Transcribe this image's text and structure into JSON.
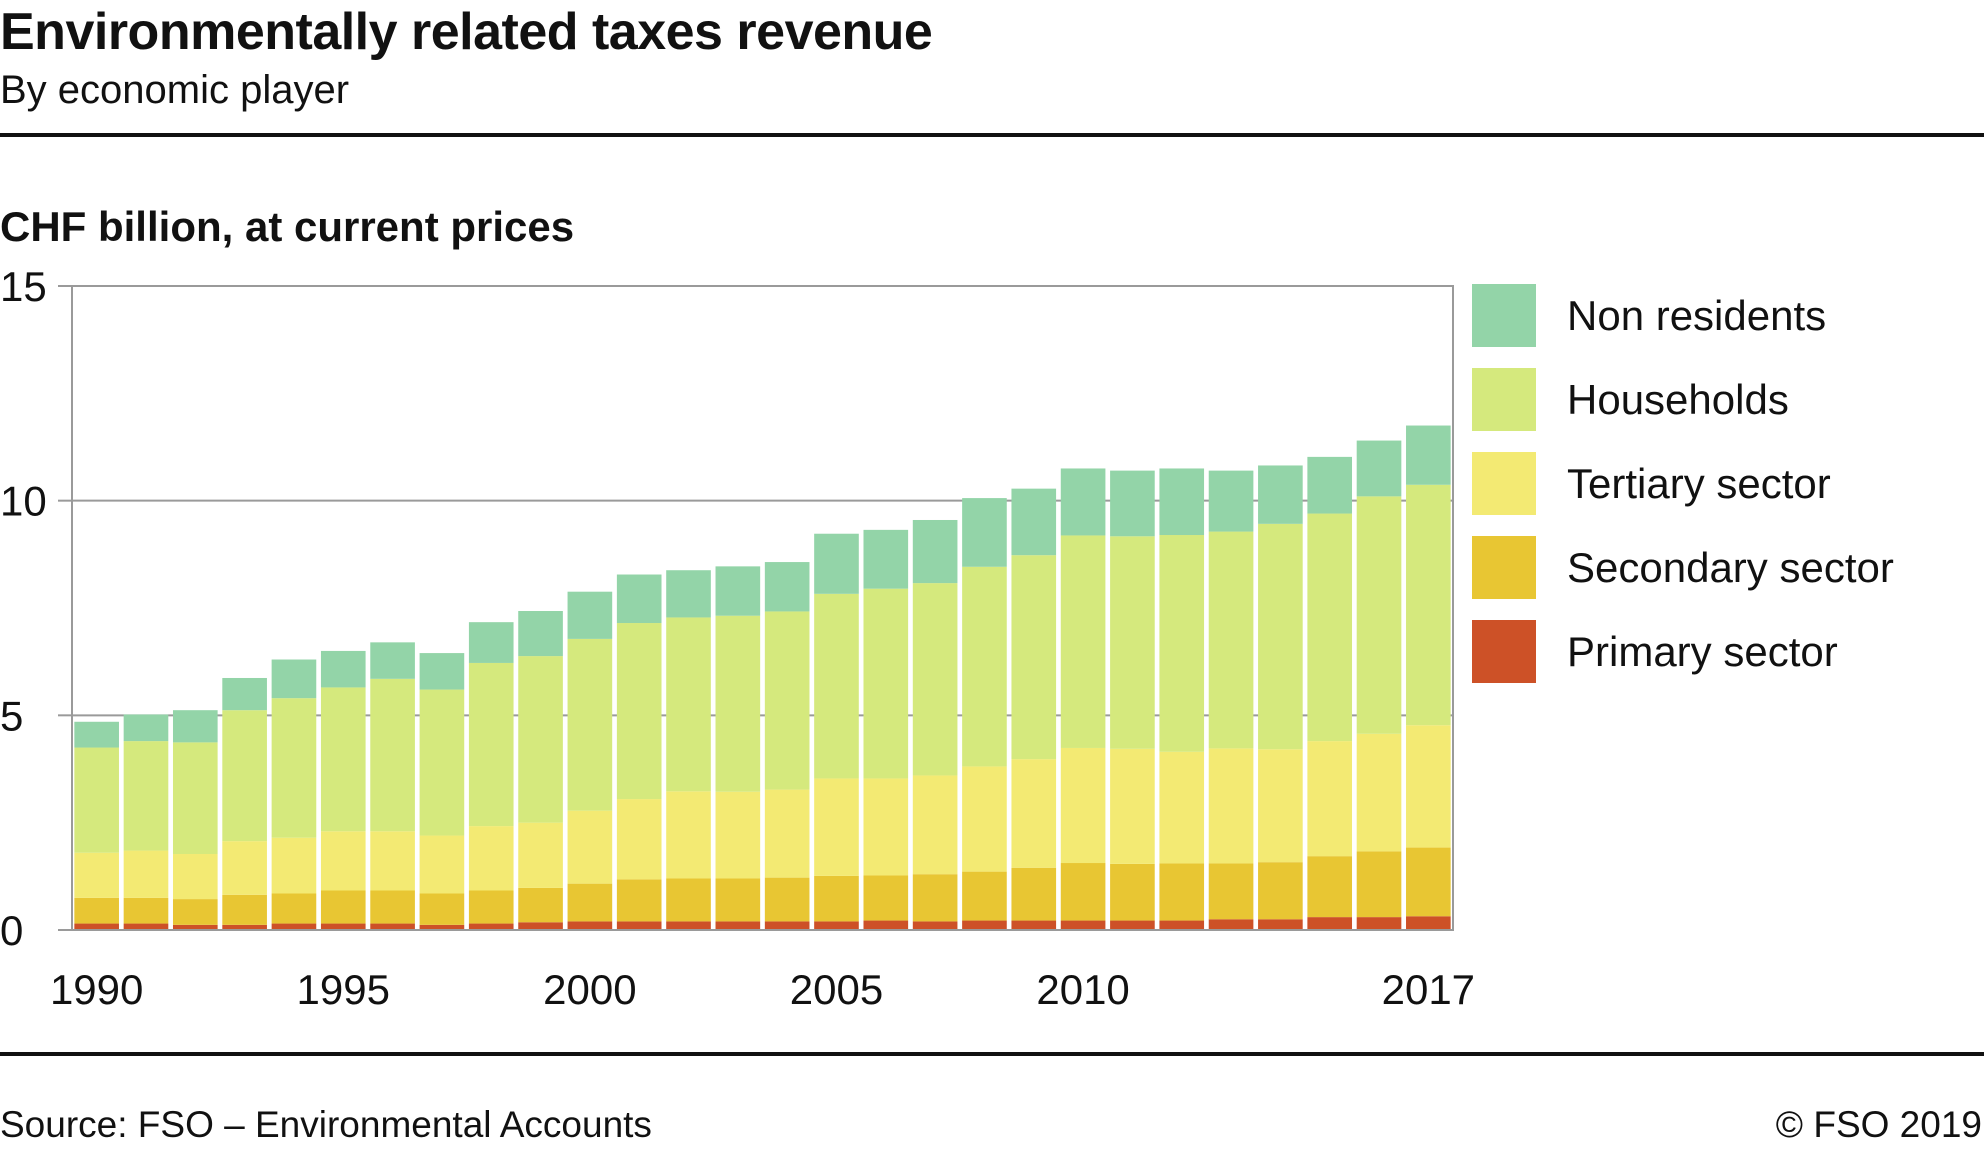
{
  "header": {
    "title": "Environmentally related taxes revenue",
    "subtitle": "By economic player"
  },
  "footer": {
    "source": "Source: FSO – Environmental Accounts",
    "copyright": "© FSO 2019"
  },
  "chart_data": {
    "type": "bar",
    "stacked": true,
    "unit_label": "CHF billion, at current prices",
    "categories": [
      "1990",
      "1991",
      "1992",
      "1993",
      "1994",
      "1995",
      "1996",
      "1997",
      "1998",
      "1999",
      "2000",
      "2001",
      "2002",
      "2003",
      "2004",
      "2005",
      "2006",
      "2007",
      "2008",
      "2009",
      "2010",
      "2011",
      "2012",
      "2013",
      "2014",
      "2015",
      "2016",
      "2017"
    ],
    "x_tick_labels": [
      "1990",
      "1995",
      "2000",
      "2005",
      "2010",
      "2017"
    ],
    "y_ticks": [
      0,
      5,
      10,
      15
    ],
    "ylim": [
      0,
      15
    ],
    "grid": true,
    "legend_position": "right",
    "series": [
      {
        "name": "Primary sector",
        "color": "#cd5127",
        "values": [
          0.15,
          0.15,
          0.12,
          0.12,
          0.15,
          0.15,
          0.15,
          0.12,
          0.15,
          0.18,
          0.2,
          0.2,
          0.2,
          0.2,
          0.2,
          0.2,
          0.22,
          0.2,
          0.22,
          0.22,
          0.22,
          0.22,
          0.22,
          0.25,
          0.25,
          0.3,
          0.3,
          0.32
        ]
      },
      {
        "name": "Secondary sector",
        "color": "#e8c633",
        "values": [
          0.6,
          0.6,
          0.6,
          0.7,
          0.7,
          0.77,
          0.77,
          0.73,
          0.77,
          0.8,
          0.88,
          0.98,
          1.0,
          1.0,
          1.02,
          1.06,
          1.05,
          1.1,
          1.14,
          1.23,
          1.34,
          1.32,
          1.33,
          1.3,
          1.33,
          1.42,
          1.53,
          1.6
        ]
      },
      {
        "name": "Tertiary sector",
        "color": "#f3ea73",
        "values": [
          1.05,
          1.1,
          1.05,
          1.25,
          1.3,
          1.38,
          1.38,
          1.35,
          1.5,
          1.52,
          1.7,
          1.87,
          2.03,
          2.02,
          2.05,
          2.27,
          2.26,
          2.3,
          2.45,
          2.53,
          2.68,
          2.68,
          2.6,
          2.68,
          2.63,
          2.68,
          2.74,
          2.85
        ]
      },
      {
        "name": "Households",
        "color": "#d5e97d",
        "values": [
          2.45,
          2.55,
          2.6,
          3.05,
          3.25,
          3.35,
          3.55,
          3.4,
          3.8,
          3.88,
          4.0,
          4.1,
          4.05,
          4.1,
          4.15,
          4.3,
          4.42,
          4.48,
          4.65,
          4.75,
          4.95,
          4.95,
          5.05,
          5.05,
          5.25,
          5.3,
          5.53,
          5.6
        ]
      },
      {
        "name": "Non residents",
        "color": "#93d4a8",
        "values": [
          0.6,
          0.62,
          0.75,
          0.75,
          0.9,
          0.85,
          0.85,
          0.85,
          0.95,
          1.05,
          1.1,
          1.13,
          1.1,
          1.15,
          1.15,
          1.4,
          1.37,
          1.47,
          1.6,
          1.55,
          1.56,
          1.53,
          1.55,
          1.42,
          1.36,
          1.32,
          1.3,
          1.38
        ]
      }
    ]
  }
}
